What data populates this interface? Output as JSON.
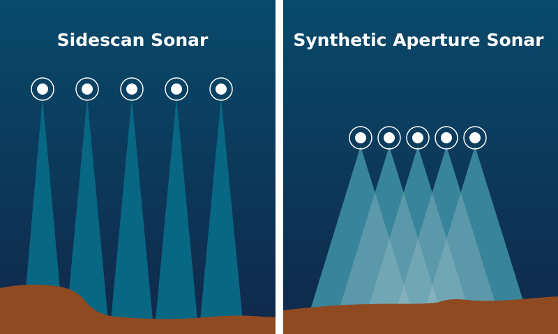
{
  "panels": {
    "left": {
      "title": "Sidescan Sonar",
      "transducer_count": 5
    },
    "right": {
      "title": "Synthetic Aperture Sonar",
      "transducer_count": 5
    }
  },
  "colors": {
    "water_top": "#084a6b",
    "water_bottom": "#10284a",
    "beam": "#086783",
    "beam_overlap": "#a9c6cf",
    "seafloor": "#8f4a22",
    "transducer": "#ffffff",
    "divider": "#ffffff"
  }
}
